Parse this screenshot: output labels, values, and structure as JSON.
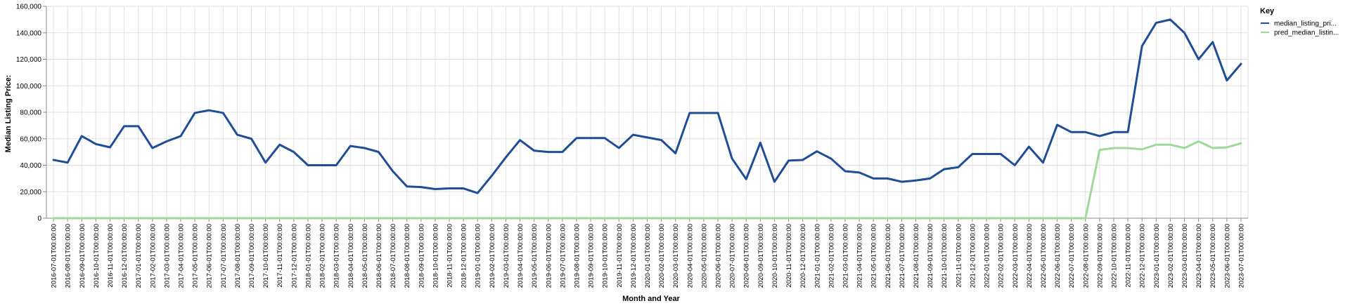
{
  "chart_data": {
    "type": "line",
    "title": "",
    "xlabel": "Month and Year",
    "ylabel": "Median Listing Price:",
    "ylim": [
      0,
      160000
    ],
    "yticks": [
      "0",
      "20,000",
      "40,000",
      "60,000",
      "80,000",
      "100,000",
      "120,000",
      "140,000",
      "160,000"
    ],
    "grid": true,
    "legend": {
      "title": "Key",
      "placement": "top-right"
    },
    "categories": [
      "2016-07-01T00:00:00",
      "2016-08-01T00:00:00",
      "2016-09-01T00:00:00",
      "2016-10-01T00:00:00",
      "2016-11-01T00:00:00",
      "2016-12-01T00:00:00",
      "2017-01-01T00:00:00",
      "2017-02-01T00:00:00",
      "2017-03-01T00:00:00",
      "2017-04-01T00:00:00",
      "2017-05-01T00:00:00",
      "2017-06-01T00:00:00",
      "2017-07-01T00:00:00",
      "2017-08-01T00:00:00",
      "2017-09-01T00:00:00",
      "2017-10-01T00:00:00",
      "2017-11-01T00:00:00",
      "2017-12-01T00:00:00",
      "2018-01-01T00:00:00",
      "2018-02-01T00:00:00",
      "2018-03-01T00:00:00",
      "2018-04-01T00:00:00",
      "2018-05-01T00:00:00",
      "2018-06-01T00:00:00",
      "2018-07-01T00:00:00",
      "2018-08-01T00:00:00",
      "2018-09-01T00:00:00",
      "2018-10-01T00:00:00",
      "2018-11-01T00:00:00",
      "2018-12-01T00:00:00",
      "2019-01-01T00:00:00",
      "2019-02-01T00:00:00",
      "2019-03-01T00:00:00",
      "2019-04-01T00:00:00",
      "2019-05-01T00:00:00",
      "2019-06-01T00:00:00",
      "2019-07-01T00:00:00",
      "2019-08-01T00:00:00",
      "2019-09-01T00:00:00",
      "2019-10-01T00:00:00",
      "2019-11-01T00:00:00",
      "2019-12-01T00:00:00",
      "2020-01-01T00:00:00",
      "2020-02-01T00:00:00",
      "2020-03-01T00:00:00",
      "2020-04-01T00:00:00",
      "2020-05-01T00:00:00",
      "2020-06-01T00:00:00",
      "2020-07-01T00:00:00",
      "2020-08-01T00:00:00",
      "2020-09-01T00:00:00",
      "2020-10-01T00:00:00",
      "2020-11-01T00:00:00",
      "2020-12-01T00:00:00",
      "2021-01-01T00:00:00",
      "2021-02-01T00:00:00",
      "2021-03-01T00:00:00",
      "2021-04-01T00:00:00",
      "2021-05-01T00:00:00",
      "2021-06-01T00:00:00",
      "2021-07-01T00:00:00",
      "2021-08-01T00:00:00",
      "2021-09-01T00:00:00",
      "2021-10-01T00:00:00",
      "2021-11-01T00:00:00",
      "2021-12-01T00:00:00",
      "2022-01-01T00:00:00",
      "2022-02-01T00:00:00",
      "2022-03-01T00:00:00",
      "2022-04-01T00:00:00",
      "2022-05-01T00:00:00",
      "2022-06-01T00:00:00",
      "2022-07-01T00:00:00",
      "2022-08-01T00:00:00",
      "2022-09-01T00:00:00",
      "2022-10-01T00:00:00",
      "2022-11-01T00:00:00",
      "2022-12-01T00:00:00",
      "2023-01-01T00:00:00",
      "2023-02-01T00:00:00",
      "2023-03-01T00:00:00",
      "2023-04-01T00:00:00",
      "2023-05-01T00:00:00",
      "2023-06-01T00:00:00",
      "2023-07-01T00:00:00"
    ],
    "series": [
      {
        "name": "median_listing_pri...",
        "color": "#1f4e97",
        "values": [
          44000,
          42000,
          62000,
          56000,
          53500,
          69500,
          69500,
          53000,
          58000,
          62000,
          79500,
          81500,
          79500,
          63000,
          60000,
          42000,
          55500,
          50000,
          40000,
          40000,
          40000,
          54500,
          53000,
          50000,
          35500,
          24000,
          23500,
          22000,
          22500,
          22500,
          19000,
          32000,
          46000,
          59000,
          51000,
          50000,
          50000,
          60500,
          60500,
          60500,
          53000,
          63000,
          61000,
          59000,
          49000,
          79500,
          79500,
          79500,
          45000,
          29500,
          57000,
          27500,
          43500,
          44000,
          50500,
          45000,
          35500,
          34500,
          30000,
          30000,
          27500,
          28500,
          30000,
          37000,
          38500,
          48500,
          48500,
          48500,
          40000,
          54000,
          42000,
          70500,
          65000,
          65000,
          62000,
          65000,
          65000,
          130000,
          147500,
          150000,
          140000,
          120000,
          133000,
          104000,
          116500
        ]
      },
      {
        "name": "pred_median_listin...",
        "color": "#9fd99a",
        "values": [
          0,
          0,
          0,
          0,
          0,
          0,
          0,
          0,
          0,
          0,
          0,
          0,
          0,
          0,
          0,
          0,
          0,
          0,
          0,
          0,
          0,
          0,
          0,
          0,
          0,
          0,
          0,
          0,
          0,
          0,
          0,
          0,
          0,
          0,
          0,
          0,
          0,
          0,
          0,
          0,
          0,
          0,
          0,
          0,
          0,
          0,
          0,
          0,
          0,
          0,
          0,
          0,
          0,
          0,
          0,
          0,
          0,
          0,
          0,
          0,
          0,
          0,
          0,
          0,
          0,
          0,
          0,
          0,
          0,
          0,
          0,
          0,
          0,
          0,
          51500,
          53000,
          53000,
          52000,
          55500,
          55500,
          53000,
          58000,
          53000,
          53500,
          56500
        ]
      }
    ]
  }
}
